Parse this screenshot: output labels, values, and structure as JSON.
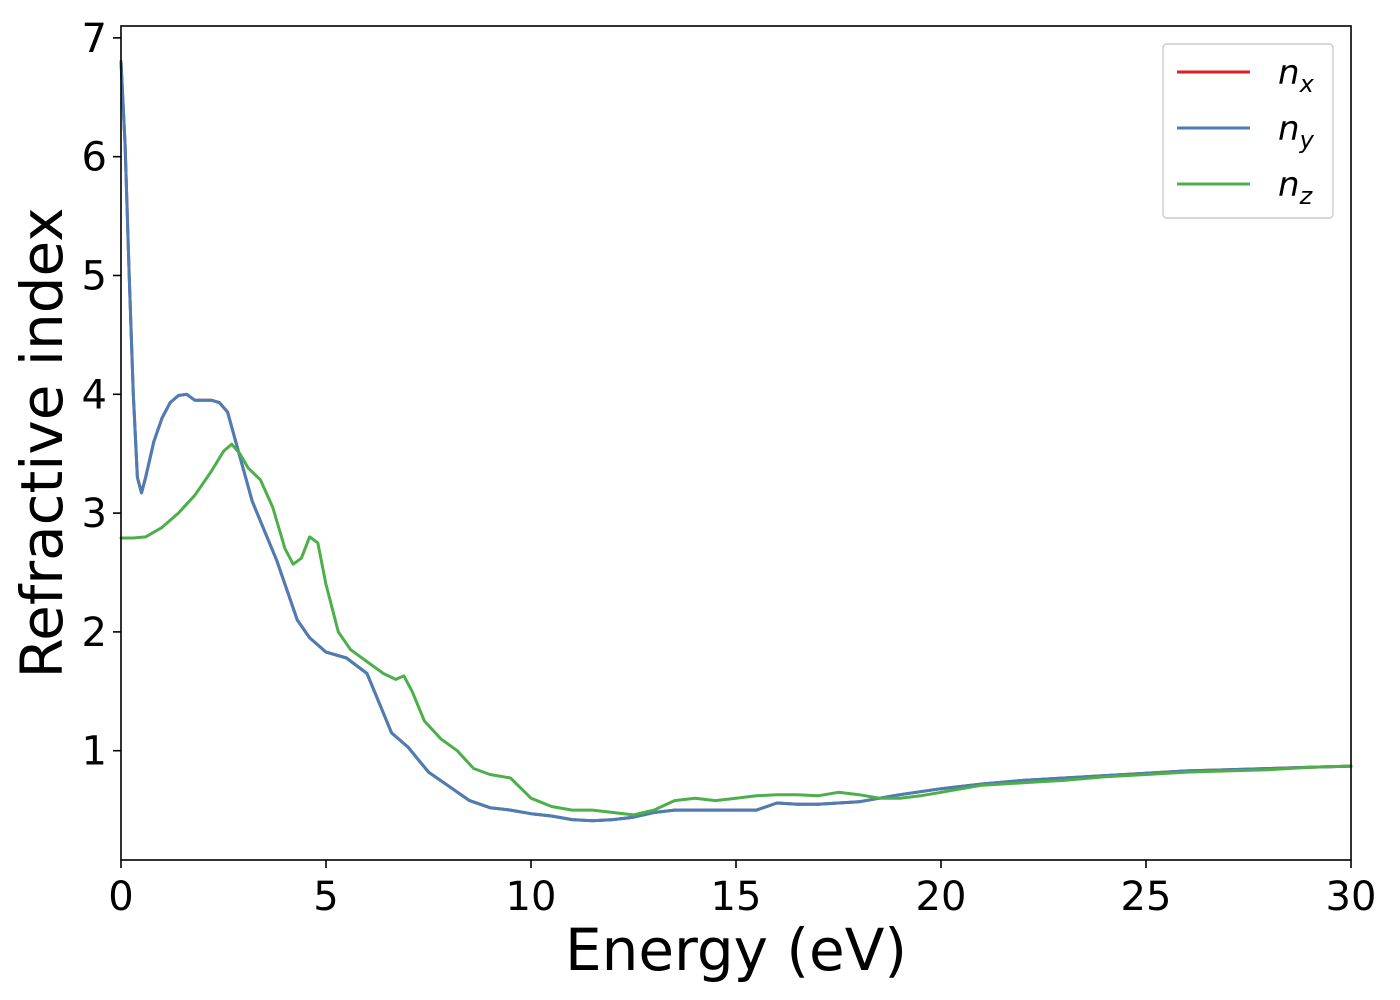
{
  "chart_data": {
    "type": "line",
    "title": "",
    "xlabel": "Energy (eV)",
    "ylabel": "Refractive index",
    "xlim": [
      0,
      30
    ],
    "ylim": [
      0.08,
      7.1
    ],
    "xticks": [
      0,
      5,
      10,
      15,
      20,
      25,
      30
    ],
    "yticks": [
      1,
      2,
      3,
      4,
      5,
      6,
      7
    ],
    "grid": false,
    "legend_position": "top-right",
    "series": [
      {
        "name": "x",
        "color": "#e41a1c",
        "x": [
          0,
          0.1,
          0.2,
          0.3,
          0.4,
          0.5,
          0.6,
          0.8,
          1.0,
          1.2,
          1.4,
          1.6,
          1.8,
          2.0,
          2.2,
          2.4,
          2.6,
          2.8,
          3.0,
          3.2,
          3.5,
          3.8,
          4.0,
          4.3,
          4.6,
          5.0,
          5.5,
          6.0,
          6.3,
          6.6,
          7.0,
          7.5,
          8.0,
          8.5,
          9.0,
          9.5,
          10.0,
          10.5,
          11.0,
          11.5,
          12.0,
          12.5,
          13.0,
          13.5,
          14.0,
          14.5,
          15.0,
          15.5,
          16.0,
          16.5,
          17.0,
          17.5,
          18.0,
          18.5,
          19.0,
          20.0,
          21.0,
          22.0,
          23.0,
          24.0,
          25.0,
          26.0,
          27.0,
          28.0,
          29.0,
          30.0
        ],
        "y": [
          6.8,
          6.1,
          5.0,
          4.0,
          3.3,
          3.17,
          3.3,
          3.6,
          3.8,
          3.93,
          3.99,
          4.0,
          3.95,
          3.95,
          3.95,
          3.93,
          3.85,
          3.6,
          3.35,
          3.1,
          2.85,
          2.6,
          2.4,
          2.1,
          1.95,
          1.83,
          1.78,
          1.65,
          1.4,
          1.15,
          1.03,
          0.82,
          0.7,
          0.58,
          0.52,
          0.5,
          0.47,
          0.45,
          0.42,
          0.41,
          0.42,
          0.44,
          0.48,
          0.5,
          0.5,
          0.5,
          0.5,
          0.5,
          0.56,
          0.55,
          0.55,
          0.56,
          0.57,
          0.6,
          0.63,
          0.68,
          0.72,
          0.75,
          0.77,
          0.79,
          0.81,
          0.83,
          0.84,
          0.85,
          0.86,
          0.87
        ]
      },
      {
        "name": "y",
        "color": "#4a7fb5",
        "x": [
          0,
          0.1,
          0.2,
          0.3,
          0.4,
          0.5,
          0.6,
          0.8,
          1.0,
          1.2,
          1.4,
          1.6,
          1.8,
          2.0,
          2.2,
          2.4,
          2.6,
          2.8,
          3.0,
          3.2,
          3.5,
          3.8,
          4.0,
          4.3,
          4.6,
          5.0,
          5.5,
          6.0,
          6.3,
          6.6,
          7.0,
          7.5,
          8.0,
          8.5,
          9.0,
          9.5,
          10.0,
          10.5,
          11.0,
          11.5,
          12.0,
          12.5,
          13.0,
          13.5,
          14.0,
          14.5,
          15.0,
          15.5,
          16.0,
          16.5,
          17.0,
          17.5,
          18.0,
          18.5,
          19.0,
          20.0,
          21.0,
          22.0,
          23.0,
          24.0,
          25.0,
          26.0,
          27.0,
          28.0,
          29.0,
          30.0
        ],
        "y": [
          6.8,
          6.1,
          5.0,
          4.0,
          3.3,
          3.17,
          3.3,
          3.6,
          3.8,
          3.93,
          3.99,
          4.0,
          3.95,
          3.95,
          3.95,
          3.93,
          3.85,
          3.6,
          3.35,
          3.1,
          2.85,
          2.6,
          2.4,
          2.1,
          1.95,
          1.83,
          1.78,
          1.65,
          1.4,
          1.15,
          1.03,
          0.82,
          0.7,
          0.58,
          0.52,
          0.5,
          0.47,
          0.45,
          0.42,
          0.41,
          0.42,
          0.44,
          0.48,
          0.5,
          0.5,
          0.5,
          0.5,
          0.5,
          0.56,
          0.55,
          0.55,
          0.56,
          0.57,
          0.6,
          0.63,
          0.68,
          0.72,
          0.75,
          0.77,
          0.79,
          0.81,
          0.83,
          0.84,
          0.85,
          0.86,
          0.87
        ]
      },
      {
        "name": "z",
        "color": "#4daf4a",
        "x": [
          0,
          0.3,
          0.6,
          1.0,
          1.4,
          1.8,
          2.2,
          2.5,
          2.7,
          2.9,
          3.1,
          3.4,
          3.7,
          4.0,
          4.2,
          4.4,
          4.6,
          4.8,
          5.0,
          5.3,
          5.6,
          6.0,
          6.4,
          6.7,
          6.9,
          7.1,
          7.4,
          7.8,
          8.2,
          8.6,
          9.0,
          9.5,
          10.0,
          10.5,
          11.0,
          11.5,
          12.0,
          12.5,
          13.0,
          13.5,
          14.0,
          14.5,
          15.0,
          15.5,
          16.0,
          16.5,
          17.0,
          17.5,
          18.0,
          18.5,
          19.0,
          19.5,
          20.0,
          21.0,
          22.0,
          23.0,
          24.0,
          25.0,
          26.0,
          27.0,
          28.0,
          29.0,
          30.0
        ],
        "y": [
          2.79,
          2.79,
          2.8,
          2.88,
          3.0,
          3.15,
          3.35,
          3.52,
          3.58,
          3.5,
          3.38,
          3.28,
          3.05,
          2.7,
          2.57,
          2.62,
          2.8,
          2.75,
          2.4,
          2.0,
          1.85,
          1.75,
          1.65,
          1.6,
          1.63,
          1.5,
          1.25,
          1.1,
          1.0,
          0.85,
          0.8,
          0.77,
          0.6,
          0.53,
          0.5,
          0.5,
          0.48,
          0.46,
          0.5,
          0.58,
          0.6,
          0.58,
          0.6,
          0.62,
          0.63,
          0.63,
          0.62,
          0.65,
          0.63,
          0.6,
          0.6,
          0.62,
          0.65,
          0.71,
          0.73,
          0.75,
          0.78,
          0.8,
          0.82,
          0.83,
          0.84,
          0.86,
          0.87
        ]
      }
    ]
  },
  "legend": {
    "base_letter": "n",
    "entries": [
      "x",
      "y",
      "z"
    ]
  },
  "colors": {
    "axis": "#000000",
    "legend_border": "#cccccc"
  }
}
